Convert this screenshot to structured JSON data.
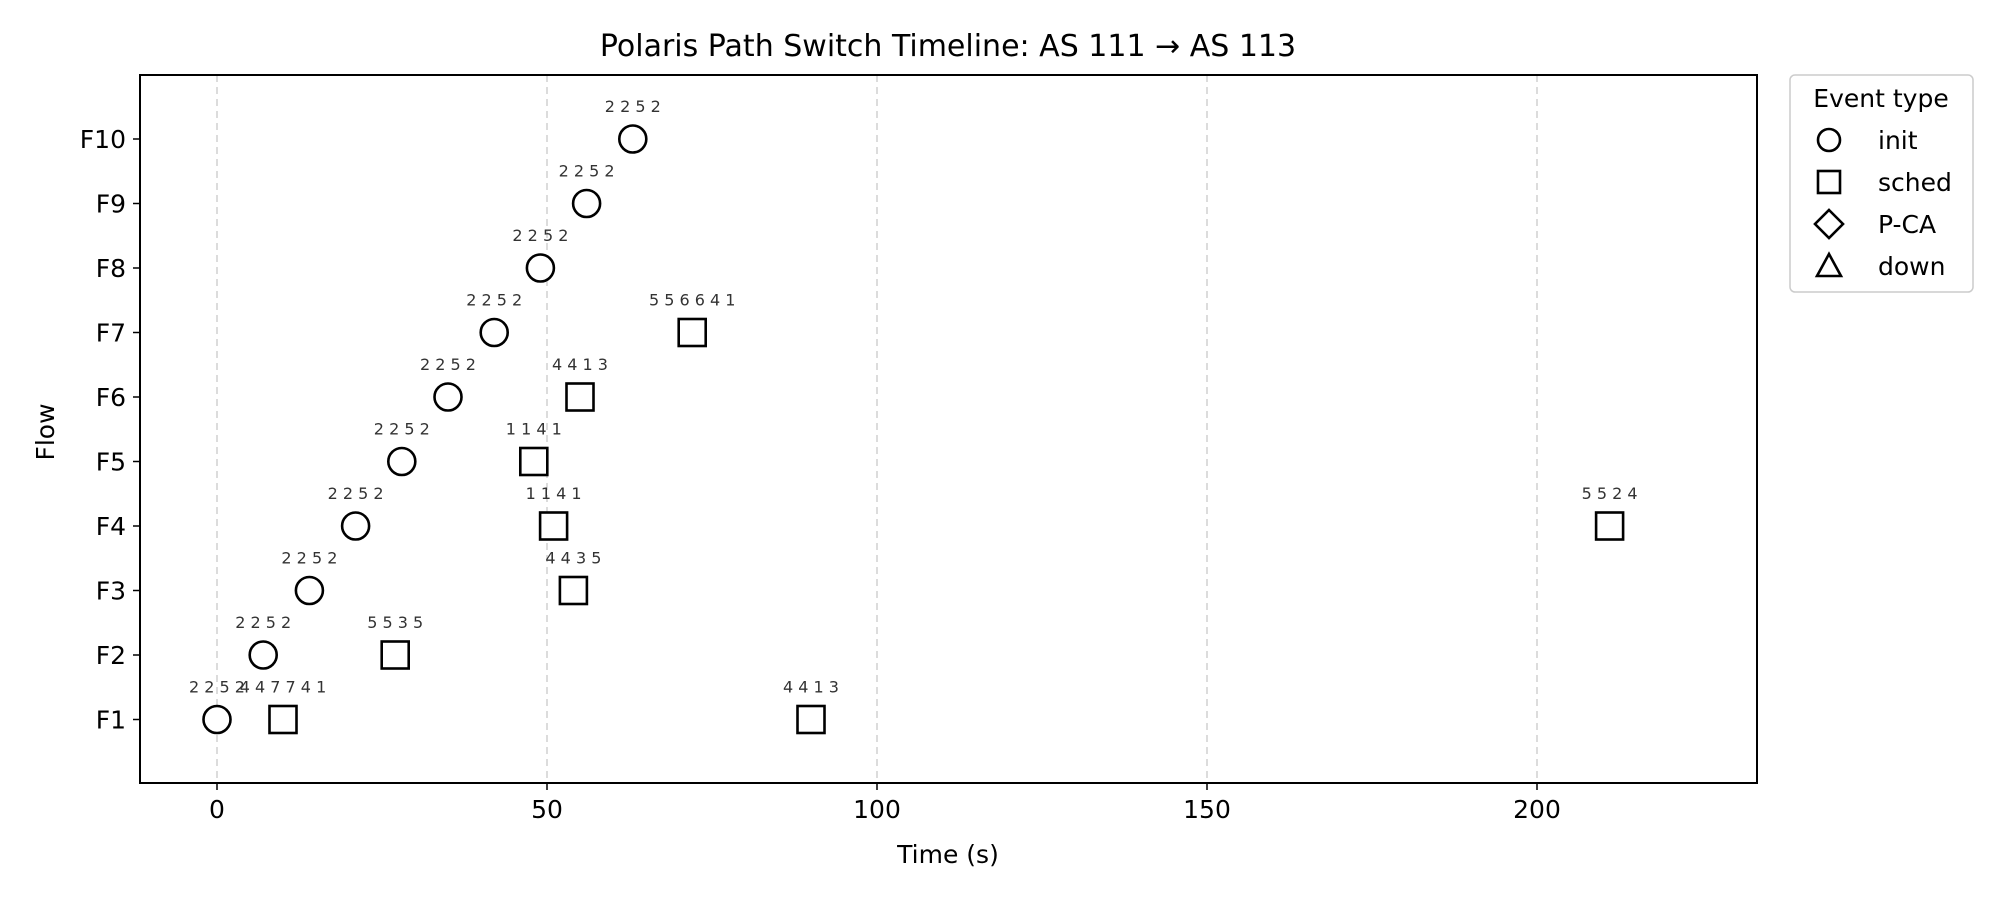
{
  "chart_data": {
    "type": "scatter",
    "title": "Polaris Path Switch Timeline: AS 111 → AS 113",
    "xlabel": "Time (s)",
    "ylabel": "Flow",
    "xlim": [
      -11.6,
      233.5
    ],
    "x_ticks": [
      0,
      50,
      100,
      150,
      200
    ],
    "x_tick_labels": [
      "0",
      "50",
      "100",
      "150",
      "200"
    ],
    "categories": [
      "F1",
      "F2",
      "F3",
      "F4",
      "F5",
      "F6",
      "F7",
      "F8",
      "F9",
      "F10"
    ],
    "grid": "x-major dashed",
    "legend": {
      "title": "Event type",
      "placement": "outside upper right",
      "entries": [
        {
          "label": "init",
          "marker": "circle"
        },
        {
          "label": "sched",
          "marker": "square"
        },
        {
          "label": "P-CA",
          "marker": "diamond"
        },
        {
          "label": "down",
          "marker": "triangle"
        }
      ]
    },
    "events": [
      {
        "flow": "F1",
        "t": 0,
        "type": "init",
        "label": "2 2 5 2"
      },
      {
        "flow": "F1",
        "t": 10,
        "type": "sched",
        "label": "4 4 7 7 4 1"
      },
      {
        "flow": "F1",
        "t": 90,
        "type": "sched",
        "label": "4 4 1 3"
      },
      {
        "flow": "F2",
        "t": 7,
        "type": "init",
        "label": "2 2 5 2"
      },
      {
        "flow": "F2",
        "t": 27,
        "type": "sched",
        "label": "5 5 3 5"
      },
      {
        "flow": "F3",
        "t": 14,
        "type": "init",
        "label": "2 2 5 2"
      },
      {
        "flow": "F3",
        "t": 54,
        "type": "sched",
        "label": "4 4 3 5"
      },
      {
        "flow": "F4",
        "t": 21,
        "type": "init",
        "label": "2 2 5 2"
      },
      {
        "flow": "F4",
        "t": 51,
        "type": "sched",
        "label": "1 1 4 1"
      },
      {
        "flow": "F4",
        "t": 211,
        "type": "sched",
        "label": "5 5 2 4"
      },
      {
        "flow": "F5",
        "t": 28,
        "type": "init",
        "label": "2 2 5 2"
      },
      {
        "flow": "F5",
        "t": 48,
        "type": "sched",
        "label": "1 1 4 1"
      },
      {
        "flow": "F6",
        "t": 35,
        "type": "init",
        "label": "2 2 5 2"
      },
      {
        "flow": "F6",
        "t": 55,
        "type": "sched",
        "label": "4 4 1 3"
      },
      {
        "flow": "F7",
        "t": 42,
        "type": "init",
        "label": "2 2 5 2"
      },
      {
        "flow": "F7",
        "t": 72,
        "type": "sched",
        "label": "5 5 6 6 4 1"
      },
      {
        "flow": "F8",
        "t": 49,
        "type": "init",
        "label": "2 2 5 2"
      },
      {
        "flow": "F9",
        "t": 56,
        "type": "init",
        "label": "2 2 5 2"
      },
      {
        "flow": "F10",
        "t": 63,
        "type": "init",
        "label": "2 2 5 2"
      }
    ]
  }
}
